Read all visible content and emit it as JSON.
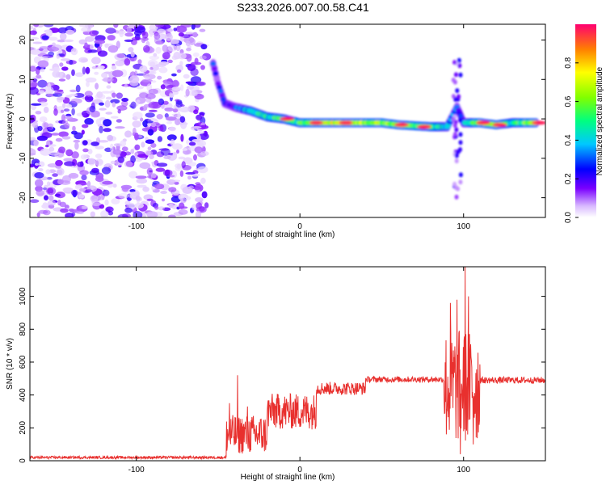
{
  "title": "S233.2026.007.00.58.C41",
  "chart_data": [
    {
      "type": "heatmap",
      "title": "S233.2026.007.00.58.C41",
      "xlabel": "Height of straight line (km)",
      "ylabel": "Frequency (Hz)",
      "xlim": [
        -165,
        150
      ],
      "ylim": [
        -25,
        24
      ],
      "xticks": [
        -100,
        0,
        100
      ],
      "yticks": [
        -20,
        -10,
        0,
        10,
        20
      ],
      "colorbar": {
        "label": "Normalized spectral amplitude",
        "range": [
          0,
          1
        ],
        "ticks": [
          0.0,
          0.2,
          0.4,
          0.6,
          0.8
        ],
        "tick_labels": [
          "0.0",
          "0.2",
          "0.4",
          "0.6",
          "0.8"
        ]
      },
      "noise_region_x": [
        -165,
        -57
      ],
      "ridge": [
        {
          "x": -53,
          "f": 14,
          "a": 0.3
        },
        {
          "x": -50,
          "f": 9,
          "a": 0.25
        },
        {
          "x": -46,
          "f": 4,
          "a": 0.3
        },
        {
          "x": -40,
          "f": 3,
          "a": 0.3
        },
        {
          "x": -30,
          "f": 2,
          "a": 0.55
        },
        {
          "x": -20,
          "f": 0.5,
          "a": 0.6
        },
        {
          "x": -10,
          "f": 0,
          "a": 0.65
        },
        {
          "x": 0,
          "f": -1,
          "a": 0.7
        },
        {
          "x": 10,
          "f": -1,
          "a": 0.85
        },
        {
          "x": 30,
          "f": -1,
          "a": 0.95
        },
        {
          "x": 50,
          "f": -1,
          "a": 0.8
        },
        {
          "x": 60,
          "f": -1.5,
          "a": 0.85
        },
        {
          "x": 80,
          "f": -2,
          "a": 0.7
        },
        {
          "x": 90,
          "f": -2,
          "a": 0.5
        },
        {
          "x": 96,
          "f": 3,
          "a": 0.3
        },
        {
          "x": 100,
          "f": -1,
          "a": 0.4
        },
        {
          "x": 110,
          "f": -1,
          "a": 0.85
        },
        {
          "x": 120,
          "f": -1.5,
          "a": 0.8
        },
        {
          "x": 130,
          "f": -1,
          "a": 0.6
        },
        {
          "x": 145,
          "f": -1,
          "a": 0.9
        }
      ]
    },
    {
      "type": "line",
      "xlabel": "Height of straight line (km)",
      "ylabel": "SNR (10 * v/v)",
      "xlim": [
        -165,
        150
      ],
      "ylim": [
        0,
        1180
      ],
      "xticks": [
        -100,
        0,
        100
      ],
      "yticks": [
        0,
        200,
        400,
        600,
        800,
        1000
      ],
      "series": [
        {
          "name": "SNR",
          "color": "#e8302e",
          "segments": [
            {
              "x": [
                -165,
                -45
              ],
              "base": 20,
              "noise": 8
            },
            {
              "x": [
                -45,
                -20
              ],
              "base": 160,
              "noise": 120
            },
            {
              "x": [
                -20,
                10
              ],
              "base": 300,
              "noise": 110
            },
            {
              "x": [
                10,
                40
              ],
              "base": 440,
              "noise": 40
            },
            {
              "x": [
                40,
                88
              ],
              "base": 495,
              "noise": 18
            },
            {
              "x": [
                88,
                110
              ],
              "base": 450,
              "noise": 350
            },
            {
              "x": [
                110,
                150
              ],
              "base": 490,
              "noise": 20
            }
          ],
          "peaks": [
            {
              "x": -43,
              "y": 350
            },
            {
              "x": -38,
              "y": 520
            },
            {
              "x": -32,
              "y": 330
            },
            {
              "x": 92,
              "y": 960
            },
            {
              "x": 96,
              "y": 980
            },
            {
              "x": 101,
              "y": 1180
            },
            {
              "x": 103,
              "y": 1000
            },
            {
              "x": 98,
              "y": 40
            },
            {
              "x": 106,
              "y": 100
            }
          ]
        }
      ]
    }
  ]
}
